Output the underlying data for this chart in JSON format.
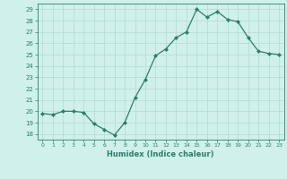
{
  "x": [
    0,
    1,
    2,
    3,
    4,
    5,
    6,
    7,
    8,
    9,
    10,
    11,
    12,
    13,
    14,
    15,
    16,
    17,
    18,
    19,
    20,
    21,
    22,
    23
  ],
  "y": [
    19.8,
    19.7,
    20.0,
    20.0,
    19.9,
    18.9,
    18.4,
    17.9,
    19.0,
    21.2,
    22.8,
    24.9,
    25.5,
    26.5,
    27.0,
    29.0,
    28.3,
    28.8,
    28.1,
    27.9,
    26.5,
    25.3,
    25.1,
    25.0
  ],
  "xlabel": "Humidex (Indice chaleur)",
  "ylim": [
    17.5,
    29.5
  ],
  "xlim": [
    -0.5,
    23.5
  ],
  "yticks": [
    18,
    19,
    20,
    21,
    22,
    23,
    24,
    25,
    26,
    27,
    28,
    29
  ],
  "xticks": [
    0,
    1,
    2,
    3,
    4,
    5,
    6,
    7,
    8,
    9,
    10,
    11,
    12,
    13,
    14,
    15,
    16,
    17,
    18,
    19,
    20,
    21,
    22,
    23
  ],
  "line_color": "#2e7d6e",
  "marker_color": "#2e7d6e",
  "bg_color": "#cff0eb",
  "grid_color": "#b8ddd8",
  "xlabel_color": "#2e7d6e",
  "tick_color": "#2e7d6e",
  "spine_color": "#2e7d6e"
}
